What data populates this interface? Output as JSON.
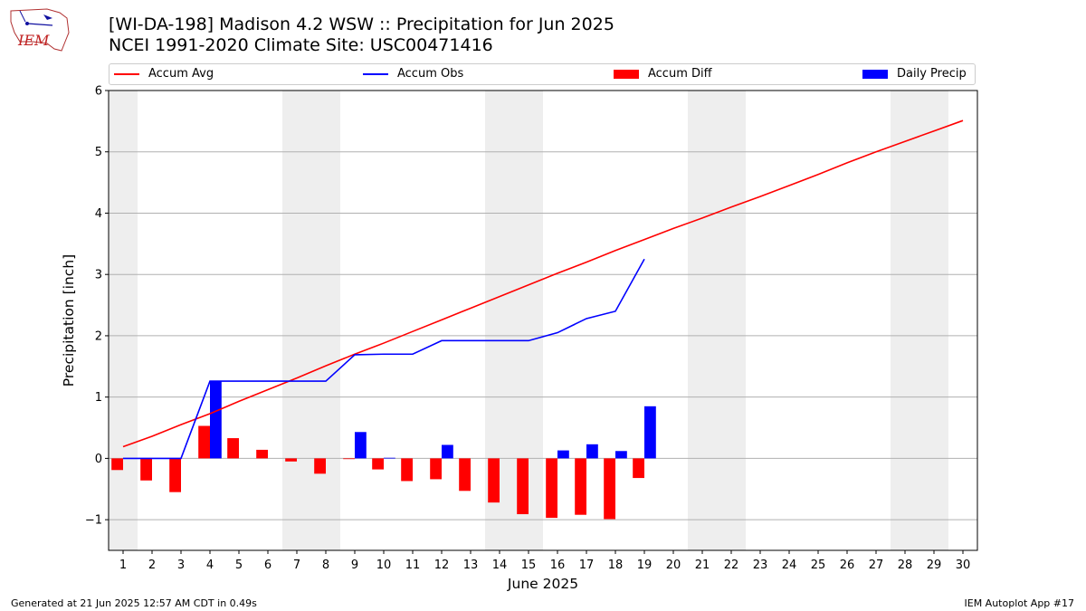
{
  "header": {
    "title_line1": "[WI-DA-198] Madison 4.2 WSW :: Precipitation for Jun 2025",
    "title_line2": "NCEI 1991-2020 Climate Site: USC00471416"
  },
  "logo": {
    "text": "IEM"
  },
  "legend": [
    {
      "label": "Accum Avg",
      "kind": "line",
      "color": "#ff0000"
    },
    {
      "label": "Accum Obs",
      "kind": "line",
      "color": "#0000ff"
    },
    {
      "label": "Accum Diff",
      "kind": "box",
      "color": "#ff0000"
    },
    {
      "label": "Daily Precip",
      "kind": "box",
      "color": "#0000ff"
    }
  ],
  "footer": {
    "left": "Generated at 21 Jun 2025 12:57 AM CDT in 0.49s",
    "right": "IEM Autoplot App #17"
  },
  "chart_data": {
    "type": "bar",
    "xlabel": "June 2025",
    "ylabel": "Precipitation [inch]",
    "xlim": [
      0.5,
      30.5
    ],
    "ylim": [
      -1.5,
      6
    ],
    "yticks": [
      -1,
      0,
      1,
      2,
      3,
      4,
      5,
      6
    ],
    "ytick_labels": [
      "−1",
      "0",
      "1",
      "2",
      "3",
      "4",
      "5",
      "6"
    ],
    "grid": "horizontal",
    "legend_position": "top",
    "weekend_shading": [
      [
        0.5,
        1.5
      ],
      [
        6.5,
        8.5
      ],
      [
        13.5,
        15.5
      ],
      [
        20.5,
        22.5
      ],
      [
        27.5,
        29.5
      ]
    ],
    "days": [
      1,
      2,
      3,
      4,
      5,
      6,
      7,
      8,
      9,
      10,
      11,
      12,
      13,
      14,
      15,
      16,
      17,
      18,
      19,
      20,
      21,
      22,
      23,
      24,
      25,
      26,
      27,
      28,
      29,
      30
    ],
    "series": [
      {
        "name": "Accum Avg",
        "kind": "line",
        "color": "#ff0000",
        "x": [
          1,
          2,
          3,
          4,
          5,
          6,
          7,
          8,
          9,
          10,
          11,
          12,
          13,
          14,
          15,
          16,
          17,
          18,
          19,
          20,
          21,
          22,
          23,
          24,
          25,
          26,
          27,
          28,
          29,
          30
        ],
        "values": [
          0.19,
          0.36,
          0.55,
          0.73,
          0.93,
          1.12,
          1.31,
          1.51,
          1.7,
          1.88,
          2.07,
          2.26,
          2.45,
          2.64,
          2.83,
          3.02,
          3.2,
          3.39,
          3.57,
          3.75,
          3.92,
          4.1,
          4.27,
          4.45,
          4.63,
          4.82,
          5.0,
          5.17,
          5.34,
          5.51
        ]
      },
      {
        "name": "Accum Obs",
        "kind": "line",
        "color": "#0000ff",
        "x": [
          1,
          2,
          3,
          4,
          5,
          6,
          7,
          8,
          9,
          10,
          11,
          12,
          13,
          14,
          15,
          16,
          17,
          18,
          19
        ],
        "values": [
          0,
          0,
          0,
          1.26,
          1.26,
          1.26,
          1.26,
          1.26,
          1.69,
          1.7,
          1.7,
          1.92,
          1.92,
          1.92,
          1.92,
          2.05,
          2.28,
          2.4,
          3.25
        ]
      },
      {
        "name": "Accum Diff",
        "kind": "bar",
        "color": "#ff0000",
        "offset": -0.2,
        "x": [
          1,
          2,
          3,
          4,
          5,
          6,
          7,
          8,
          9,
          10,
          11,
          12,
          13,
          14,
          15,
          16,
          17,
          18,
          19
        ],
        "values": [
          -0.19,
          -0.36,
          -0.55,
          0.53,
          0.33,
          0.14,
          -0.05,
          -0.25,
          -0.01,
          -0.18,
          -0.37,
          -0.34,
          -0.53,
          -0.72,
          -0.91,
          -0.97,
          -0.92,
          -0.99,
          -0.32
        ]
      },
      {
        "name": "Daily Precip",
        "kind": "bar",
        "color": "#0000ff",
        "offset": 0.2,
        "x": [
          1,
          2,
          3,
          4,
          5,
          6,
          7,
          8,
          9,
          10,
          11,
          12,
          13,
          14,
          15,
          16,
          17,
          18,
          19
        ],
        "values": [
          0,
          0,
          0,
          1.26,
          0,
          0,
          0,
          0,
          0.43,
          0.01,
          0,
          0.22,
          0,
          0,
          0,
          0.13,
          0.23,
          0.12,
          0.85
        ]
      }
    ]
  }
}
